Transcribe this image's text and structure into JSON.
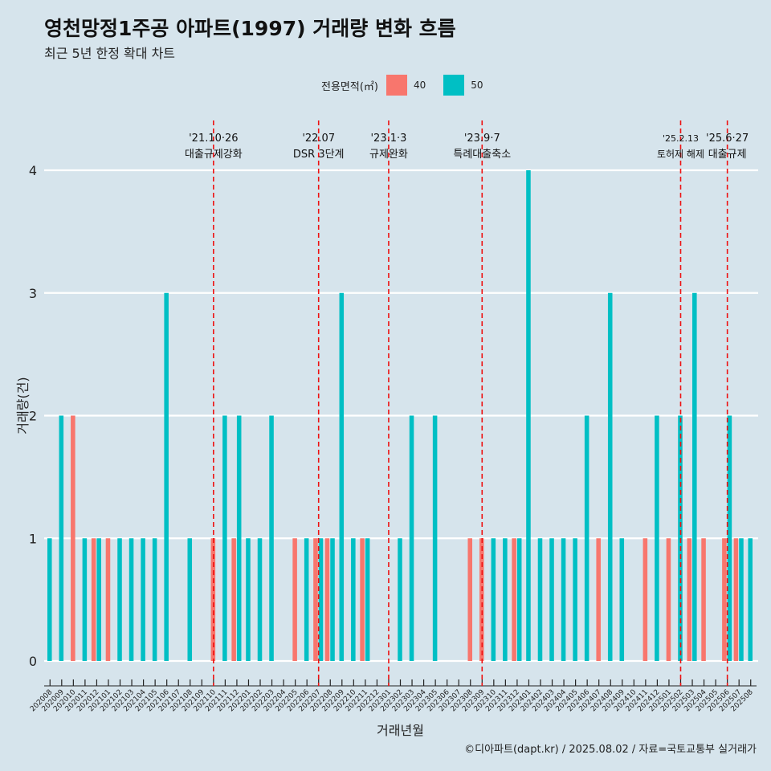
{
  "title": "영천망정1주공 아파트(1997) 거래량 변화 흐름",
  "subtitle": "최근 5년 한정 확대 차트",
  "caption": "©디아파트(dapt.kr) / 2025.08.02 / 자료=국토교통부 실거래가",
  "legend": {
    "title": "전용면적(㎡)",
    "items": [
      {
        "label": "40",
        "color": "#f8766d"
      },
      {
        "label": "50",
        "color": "#00bfc4"
      }
    ]
  },
  "chart_data": {
    "type": "bar",
    "xlabel": "거래년월",
    "ylabel": "거래량(건)",
    "ylim": [
      0,
      4
    ],
    "yticks": [
      0,
      1,
      2,
      3,
      4
    ],
    "categories": [
      "202008",
      "202009",
      "202010",
      "202011",
      "202012",
      "202101",
      "202102",
      "202103",
      "202104",
      "202105",
      "202106",
      "202107",
      "202108",
      "202109",
      "202110",
      "202111",
      "202112",
      "202201",
      "202202",
      "202203",
      "202204",
      "202205",
      "202206",
      "202207",
      "202208",
      "202209",
      "202210",
      "202211",
      "202212",
      "202301",
      "202302",
      "202303",
      "202304",
      "202305",
      "202306",
      "202307",
      "202308",
      "202309",
      "202310",
      "202311",
      "202312",
      "202401",
      "202402",
      "202403",
      "202404",
      "202405",
      "202406",
      "202407",
      "202408",
      "202409",
      "202410",
      "202411",
      "202412",
      "202501",
      "202502",
      "202503",
      "202504",
      "202505",
      "202506",
      "202507",
      "202508"
    ],
    "series": [
      {
        "name": "40",
        "color": "#f8766d",
        "values": [
          0,
          0,
          2,
          0,
          1,
          1,
          0,
          0,
          0,
          0,
          0,
          0,
          0,
          0,
          1,
          0,
          1,
          0,
          0,
          0,
          0,
          1,
          0,
          1,
          1,
          0,
          0,
          1,
          0,
          0,
          0,
          0,
          0,
          0,
          0,
          0,
          1,
          1,
          0,
          0,
          1,
          0,
          0,
          0,
          0,
          0,
          0,
          1,
          0,
          0,
          0,
          1,
          0,
          1,
          0,
          1,
          1,
          0,
          1,
          1,
          0
        ]
      },
      {
        "name": "50",
        "color": "#00bfc4",
        "values": [
          1,
          2,
          0,
          1,
          1,
          0,
          1,
          1,
          1,
          1,
          3,
          0,
          1,
          0,
          0,
          2,
          2,
          1,
          1,
          2,
          0,
          0,
          1,
          1,
          1,
          3,
          1,
          1,
          0,
          0,
          1,
          2,
          0,
          2,
          0,
          0,
          0,
          0,
          1,
          1,
          1,
          4,
          1,
          1,
          1,
          1,
          2,
          0,
          3,
          1,
          0,
          0,
          2,
          0,
          2,
          3,
          0,
          0,
          2,
          1,
          1
        ]
      }
    ],
    "annotations": [
      {
        "date": "'21.10·26",
        "text": "대출규제강화",
        "at": "202110"
      },
      {
        "date": "'22.07",
        "text": "DSR 3단계",
        "at": "202207"
      },
      {
        "date": "'23.1·3",
        "text": "규제완화",
        "at": "202301"
      },
      {
        "date": "'23.9·7",
        "text": "특례대출축소",
        "at": "202309"
      },
      {
        "date": "'25.2.13",
        "text": "토허제 해제",
        "at": "202502"
      },
      {
        "date": "'25.6·27",
        "text": "대출규제",
        "at": "202506"
      }
    ]
  }
}
